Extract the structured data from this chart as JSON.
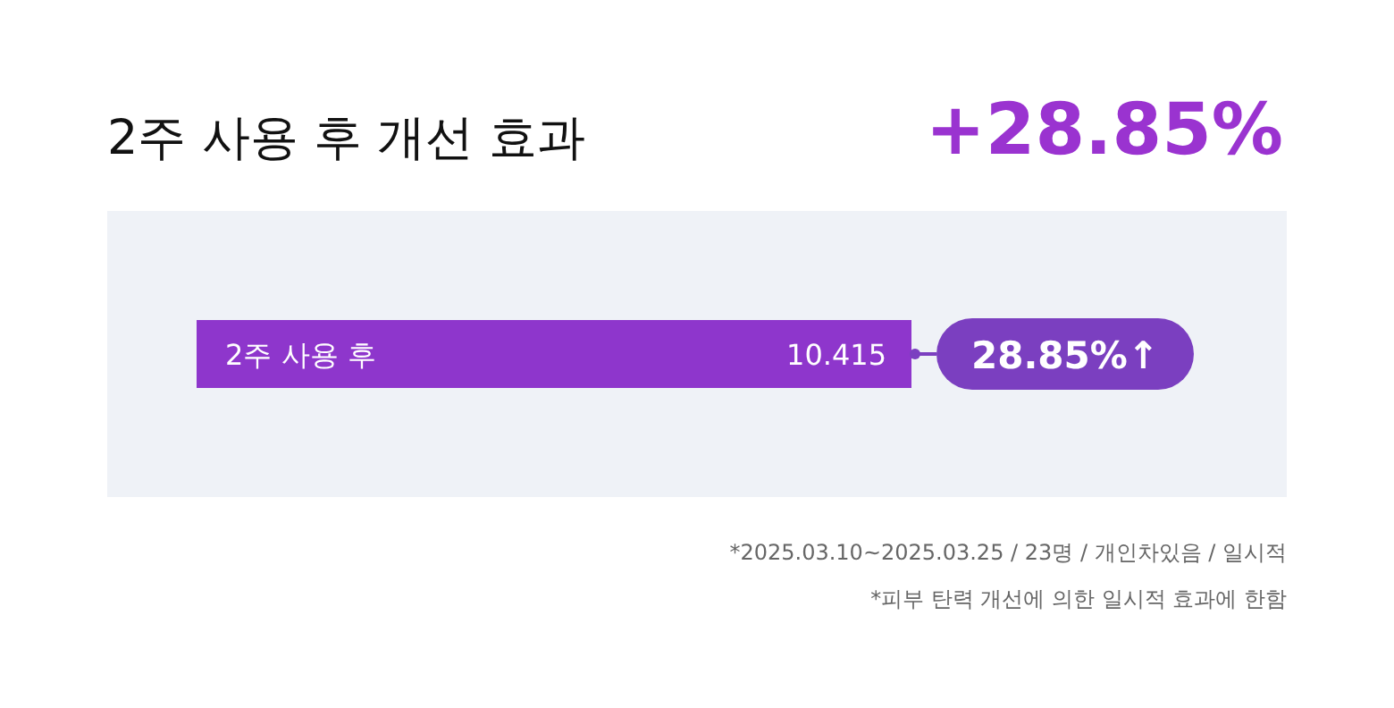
{
  "chart_data": {
    "type": "bar",
    "orientation": "horizontal",
    "title": "2주 사용 후 개선 효과",
    "categories": [
      "2주 사용 후"
    ],
    "values": [
      10.415
    ],
    "color": "#8e36cc",
    "data_labels": true,
    "annotations": [
      "+28.85%",
      "28.85%↑",
      "*2025.03.10~2025.03.25 / 23명 / 개인차있음 / 일시적",
      "*피부 탄력 개선에 의한 일시적 효과에 한함"
    ]
  }
}
